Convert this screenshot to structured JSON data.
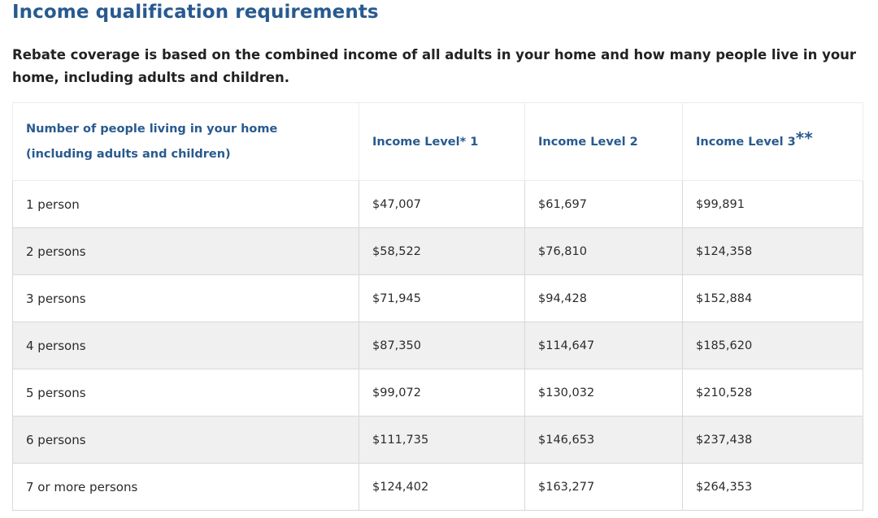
{
  "heading": "Income qualification requirements",
  "intro": "Rebate coverage is based on the combined income of all adults in your home and how many people live in your home, including adults and children.",
  "table": {
    "header": {
      "people_line1": "Number of people living in your home",
      "people_line2": "(including adults and children)",
      "level1": "Income Level* 1",
      "level2": "Income Level 2",
      "level3": "Income Level 3",
      "level3_mark": "**"
    },
    "rows": [
      {
        "people": "1 person",
        "level1": "$47,007",
        "level2": "$61,697",
        "level3": "$99,891"
      },
      {
        "people": "2 persons",
        "level1": "$58,522",
        "level2": "$76,810",
        "level3": "$124,358"
      },
      {
        "people": "3 persons",
        "level1": "$71,945",
        "level2": "$94,428",
        "level3": "$152,884"
      },
      {
        "people": "4 persons",
        "level1": "$87,350",
        "level2": "$114,647",
        "level3": "$185,620"
      },
      {
        "people": "5 persons",
        "level1": "$99,072",
        "level2": "$130,032",
        "level3": "$210,528"
      },
      {
        "people": "6 persons",
        "level1": "$111,735",
        "level2": "$146,653",
        "level3": "$237,438"
      },
      {
        "people": "7 or more persons",
        "level1": "$124,402",
        "level2": "$163,277",
        "level3": "$264,353"
      }
    ]
  },
  "colors": {
    "heading": "#285a8f",
    "row_stripe": "#f0f0f0",
    "border": "#d8d8d8"
  }
}
